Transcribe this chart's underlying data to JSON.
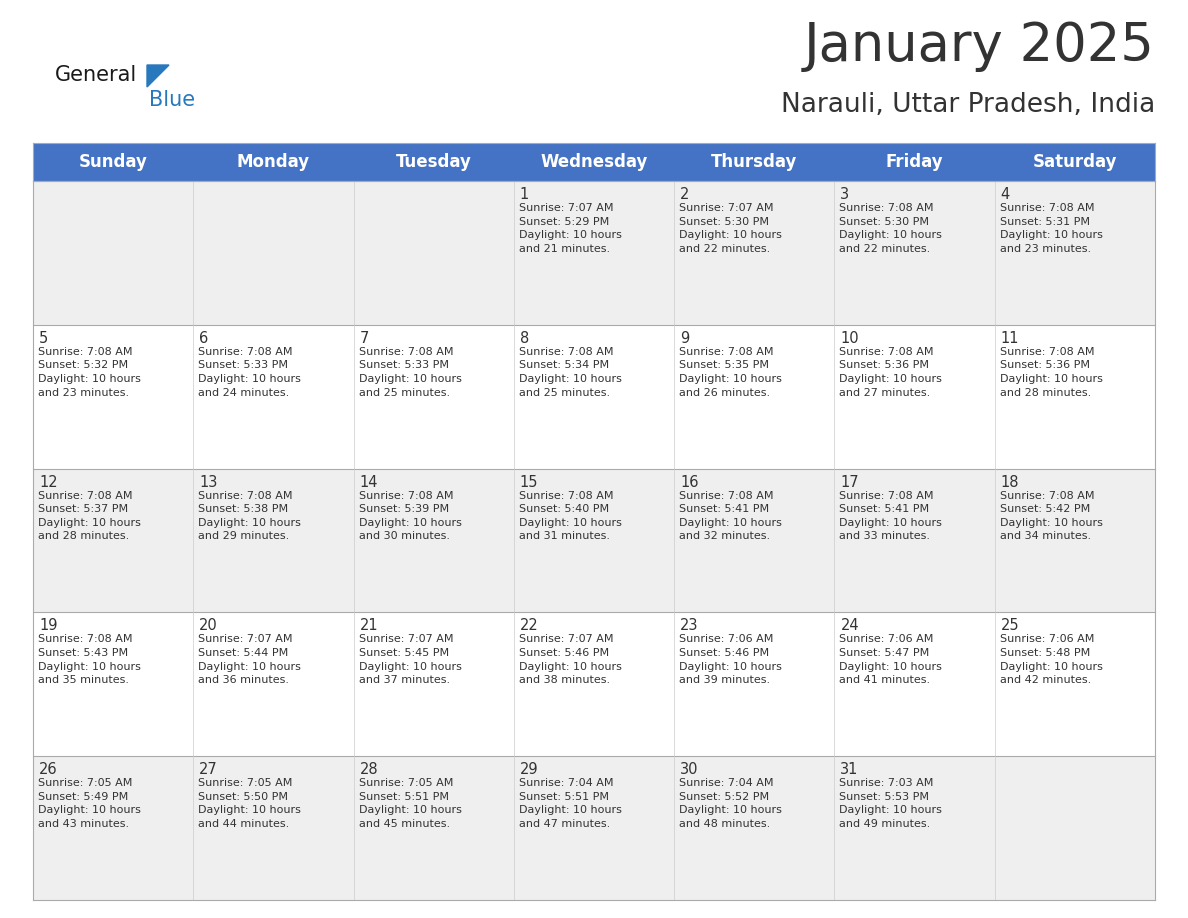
{
  "title": "January 2025",
  "subtitle": "Narauli, Uttar Pradesh, India",
  "header_bg": "#4472C4",
  "header_text_color": "#FFFFFF",
  "header_font_size": 12,
  "days_of_week": [
    "Sunday",
    "Monday",
    "Tuesday",
    "Wednesday",
    "Thursday",
    "Friday",
    "Saturday"
  ],
  "cell_bg_even": "#EFEFEF",
  "cell_bg_odd": "#FFFFFF",
  "title_font_size": 38,
  "subtitle_font_size": 19,
  "day_number_font_size": 10.5,
  "cell_text_font_size": 8,
  "grid_color": "#AAAAAA",
  "text_color": "#333333",
  "logo_general_color": "#1a1a1a",
  "logo_blue_color": "#2878BE",
  "calendar_data": [
    [
      null,
      null,
      null,
      {
        "day": 1,
        "sunrise": "7:07 AM",
        "sunset": "5:29 PM",
        "daylight_h": "10 hours",
        "daylight_m": "and 21 minutes."
      },
      {
        "day": 2,
        "sunrise": "7:07 AM",
        "sunset": "5:30 PM",
        "daylight_h": "10 hours",
        "daylight_m": "and 22 minutes."
      },
      {
        "day": 3,
        "sunrise": "7:08 AM",
        "sunset": "5:30 PM",
        "daylight_h": "10 hours",
        "daylight_m": "and 22 minutes."
      },
      {
        "day": 4,
        "sunrise": "7:08 AM",
        "sunset": "5:31 PM",
        "daylight_h": "10 hours",
        "daylight_m": "and 23 minutes."
      }
    ],
    [
      {
        "day": 5,
        "sunrise": "7:08 AM",
        "sunset": "5:32 PM",
        "daylight_h": "10 hours",
        "daylight_m": "and 23 minutes."
      },
      {
        "day": 6,
        "sunrise": "7:08 AM",
        "sunset": "5:33 PM",
        "daylight_h": "10 hours",
        "daylight_m": "and 24 minutes."
      },
      {
        "day": 7,
        "sunrise": "7:08 AM",
        "sunset": "5:33 PM",
        "daylight_h": "10 hours",
        "daylight_m": "and 25 minutes."
      },
      {
        "day": 8,
        "sunrise": "7:08 AM",
        "sunset": "5:34 PM",
        "daylight_h": "10 hours",
        "daylight_m": "and 25 minutes."
      },
      {
        "day": 9,
        "sunrise": "7:08 AM",
        "sunset": "5:35 PM",
        "daylight_h": "10 hours",
        "daylight_m": "and 26 minutes."
      },
      {
        "day": 10,
        "sunrise": "7:08 AM",
        "sunset": "5:36 PM",
        "daylight_h": "10 hours",
        "daylight_m": "and 27 minutes."
      },
      {
        "day": 11,
        "sunrise": "7:08 AM",
        "sunset": "5:36 PM",
        "daylight_h": "10 hours",
        "daylight_m": "and 28 minutes."
      }
    ],
    [
      {
        "day": 12,
        "sunrise": "7:08 AM",
        "sunset": "5:37 PM",
        "daylight_h": "10 hours",
        "daylight_m": "and 28 minutes."
      },
      {
        "day": 13,
        "sunrise": "7:08 AM",
        "sunset": "5:38 PM",
        "daylight_h": "10 hours",
        "daylight_m": "and 29 minutes."
      },
      {
        "day": 14,
        "sunrise": "7:08 AM",
        "sunset": "5:39 PM",
        "daylight_h": "10 hours",
        "daylight_m": "and 30 minutes."
      },
      {
        "day": 15,
        "sunrise": "7:08 AM",
        "sunset": "5:40 PM",
        "daylight_h": "10 hours",
        "daylight_m": "and 31 minutes."
      },
      {
        "day": 16,
        "sunrise": "7:08 AM",
        "sunset": "5:41 PM",
        "daylight_h": "10 hours",
        "daylight_m": "and 32 minutes."
      },
      {
        "day": 17,
        "sunrise": "7:08 AM",
        "sunset": "5:41 PM",
        "daylight_h": "10 hours",
        "daylight_m": "and 33 minutes."
      },
      {
        "day": 18,
        "sunrise": "7:08 AM",
        "sunset": "5:42 PM",
        "daylight_h": "10 hours",
        "daylight_m": "and 34 minutes."
      }
    ],
    [
      {
        "day": 19,
        "sunrise": "7:08 AM",
        "sunset": "5:43 PM",
        "daylight_h": "10 hours",
        "daylight_m": "and 35 minutes."
      },
      {
        "day": 20,
        "sunrise": "7:07 AM",
        "sunset": "5:44 PM",
        "daylight_h": "10 hours",
        "daylight_m": "and 36 minutes."
      },
      {
        "day": 21,
        "sunrise": "7:07 AM",
        "sunset": "5:45 PM",
        "daylight_h": "10 hours",
        "daylight_m": "and 37 minutes."
      },
      {
        "day": 22,
        "sunrise": "7:07 AM",
        "sunset": "5:46 PM",
        "daylight_h": "10 hours",
        "daylight_m": "and 38 minutes."
      },
      {
        "day": 23,
        "sunrise": "7:06 AM",
        "sunset": "5:46 PM",
        "daylight_h": "10 hours",
        "daylight_m": "and 39 minutes."
      },
      {
        "day": 24,
        "sunrise": "7:06 AM",
        "sunset": "5:47 PM",
        "daylight_h": "10 hours",
        "daylight_m": "and 41 minutes."
      },
      {
        "day": 25,
        "sunrise": "7:06 AM",
        "sunset": "5:48 PM",
        "daylight_h": "10 hours",
        "daylight_m": "and 42 minutes."
      }
    ],
    [
      {
        "day": 26,
        "sunrise": "7:05 AM",
        "sunset": "5:49 PM",
        "daylight_h": "10 hours",
        "daylight_m": "and 43 minutes."
      },
      {
        "day": 27,
        "sunrise": "7:05 AM",
        "sunset": "5:50 PM",
        "daylight_h": "10 hours",
        "daylight_m": "and 44 minutes."
      },
      {
        "day": 28,
        "sunrise": "7:05 AM",
        "sunset": "5:51 PM",
        "daylight_h": "10 hours",
        "daylight_m": "and 45 minutes."
      },
      {
        "day": 29,
        "sunrise": "7:04 AM",
        "sunset": "5:51 PM",
        "daylight_h": "10 hours",
        "daylight_m": "and 47 minutes."
      },
      {
        "day": 30,
        "sunrise": "7:04 AM",
        "sunset": "5:52 PM",
        "daylight_h": "10 hours",
        "daylight_m": "and 48 minutes."
      },
      {
        "day": 31,
        "sunrise": "7:03 AM",
        "sunset": "5:53 PM",
        "daylight_h": "10 hours",
        "daylight_m": "and 49 minutes."
      },
      null
    ]
  ]
}
